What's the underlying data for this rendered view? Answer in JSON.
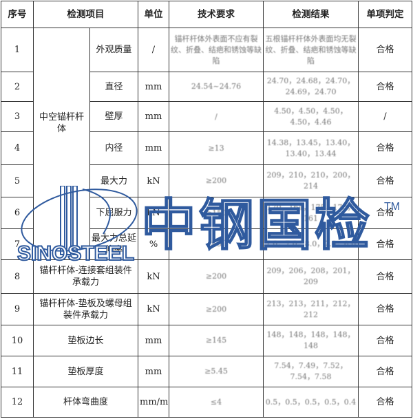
{
  "headers": {
    "no": "序号",
    "item": "检测项目",
    "unit": "单位",
    "requirement": "技术要求",
    "result": "检测结果",
    "verdict": "单项判定"
  },
  "group_label": "中空锚杆杆体",
  "rows": [
    {
      "no": "1",
      "item": "外观质量",
      "unit": "/",
      "requirement": "锚杆杆体外表面不应有裂纹、折叠、结疤和锈蚀等缺陷",
      "result": "五根锚杆杆体外表面均无裂纹、折叠、结疤和锈蚀等缺陷",
      "verdict": "合格"
    },
    {
      "no": "2",
      "item": "直径",
      "unit": "mm",
      "requirement": "24.54~24.76",
      "result": "24.70，24.68，24.70，24.69，24.70",
      "verdict": "合格"
    },
    {
      "no": "3",
      "item": "壁厚",
      "unit": "mm",
      "requirement": "/",
      "result": "4.50，4.50，4.50，4.50，4.46",
      "verdict": "/"
    },
    {
      "no": "4",
      "item": "内径",
      "unit": "mm",
      "requirement": "≥13",
      "result": "14.38，13.45，13.40，13.40，13.44",
      "verdict": "合格"
    },
    {
      "no": "5",
      "item": "最大力",
      "unit": "kN",
      "requirement": "≥200",
      "result": "209，210，210，200，214",
      "verdict": "合格"
    },
    {
      "no": "6",
      "item": "下屈服力",
      "unit": "kN",
      "requirement": "≥150",
      "result": "170，164，175，170，161",
      "verdict": "合格"
    },
    {
      "no": "7",
      "item": "最大力总延伸率",
      "unit": "%",
      "requirement": "≥5",
      "result": "7.0，7.0，8.0，7.0，8.0",
      "verdict": "合格"
    },
    {
      "no": "8",
      "item": "锚杆杆体-连接套组装件承载力",
      "unit": "kN",
      "requirement": "≥200",
      "result": "209，206，208，201，209",
      "verdict": "合格"
    },
    {
      "no": "9",
      "item": "锚杆杆体-垫板及螺母组装件承载力",
      "unit": "kN",
      "requirement": "≥200",
      "result": "213，213，211，212，212",
      "verdict": "合格"
    },
    {
      "no": "10",
      "item": "垫板边长",
      "unit": "mm",
      "requirement": "≥145",
      "result": "148，148，148，148，148",
      "verdict": "合格"
    },
    {
      "no": "11",
      "item": "垫板厚度",
      "unit": "mm",
      "requirement": "≥5.45",
      "result": "7.54，7.49，7.52，7.54，7.58",
      "verdict": "合格"
    },
    {
      "no": "12",
      "item": "杆体弯曲度",
      "unit": "mm/m",
      "requirement": "≤4",
      "result": "0.5，0.5，0.5，0.5，0.4",
      "verdict": "合格"
    }
  ],
  "watermark": {
    "logo_text": "SINOSTEEL",
    "brand_text": "中钢国检",
    "tm": "TM",
    "color": "#2f5a9e"
  }
}
